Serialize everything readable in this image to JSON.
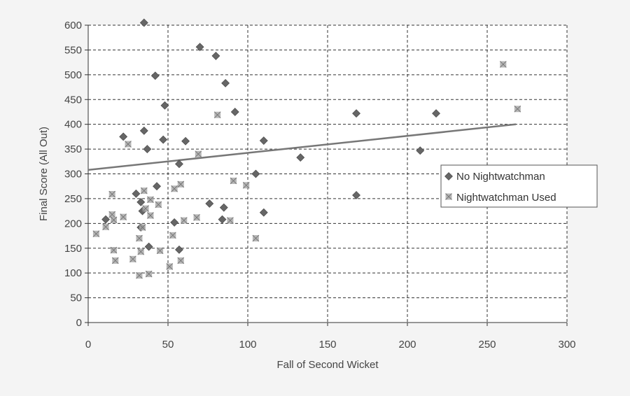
{
  "chart_data": {
    "type": "scatter",
    "title": "",
    "xlabel": "Fall of Second Wicket",
    "ylabel": "Final Score (All Out)",
    "xlim": [
      0,
      300
    ],
    "ylim": [
      0,
      600
    ],
    "x_ticks": [
      0,
      50,
      100,
      150,
      200,
      250,
      300
    ],
    "y_ticks": [
      0,
      50,
      100,
      150,
      200,
      250,
      300,
      350,
      400,
      450,
      500,
      550,
      600
    ],
    "grid": true,
    "legend_position": "right",
    "series": [
      {
        "name": "No Nightwatchman",
        "marker": "diamond",
        "color": "#666666",
        "points": [
          [
            35,
            605
          ],
          [
            70,
            556
          ],
          [
            80,
            538
          ],
          [
            42,
            498
          ],
          [
            86,
            483
          ],
          [
            48,
            438
          ],
          [
            92,
            425
          ],
          [
            168,
            422
          ],
          [
            218,
            422
          ],
          [
            35,
            387
          ],
          [
            22,
            375
          ],
          [
            47,
            369
          ],
          [
            61,
            366
          ],
          [
            110,
            367
          ],
          [
            37,
            350
          ],
          [
            208,
            347
          ],
          [
            133,
            333
          ],
          [
            57,
            320
          ],
          [
            105,
            300
          ],
          [
            30,
            260
          ],
          [
            168,
            257
          ],
          [
            43,
            275
          ],
          [
            33,
            243
          ],
          [
            76,
            240
          ],
          [
            85,
            232
          ],
          [
            34,
            225
          ],
          [
            110,
            222
          ],
          [
            11,
            208
          ],
          [
            84,
            208
          ],
          [
            54,
            202
          ],
          [
            33,
            192
          ],
          [
            38,
            153
          ],
          [
            57,
            147
          ]
        ]
      },
      {
        "name": "Nightwatchman Used",
        "marker": "x-square",
        "color": "#aaaaaa",
        "points": [
          [
            260,
            521
          ],
          [
            269,
            431
          ],
          [
            81,
            419
          ],
          [
            25,
            360
          ],
          [
            69,
            340
          ],
          [
            91,
            286
          ],
          [
            99,
            277
          ],
          [
            58,
            279
          ],
          [
            35,
            266
          ],
          [
            15,
            259
          ],
          [
            54,
            270
          ],
          [
            39,
            248
          ],
          [
            44,
            238
          ],
          [
            36,
            230
          ],
          [
            15,
            218
          ],
          [
            39,
            216
          ],
          [
            22,
            213
          ],
          [
            16,
            207
          ],
          [
            60,
            206
          ],
          [
            68,
            212
          ],
          [
            89,
            206
          ],
          [
            11,
            193
          ],
          [
            34,
            192
          ],
          [
            32,
            170
          ],
          [
            5,
            179
          ],
          [
            53,
            176
          ],
          [
            105,
            170
          ],
          [
            16,
            146
          ],
          [
            33,
            143
          ],
          [
            45,
            145
          ],
          [
            17,
            125
          ],
          [
            28,
            128
          ],
          [
            58,
            125
          ],
          [
            51,
            113
          ],
          [
            32,
            95
          ],
          [
            38,
            98
          ]
        ]
      }
    ],
    "trendline": {
      "applies_to": "all",
      "points": [
        [
          0,
          308
        ],
        [
          268,
          400
        ]
      ]
    }
  }
}
